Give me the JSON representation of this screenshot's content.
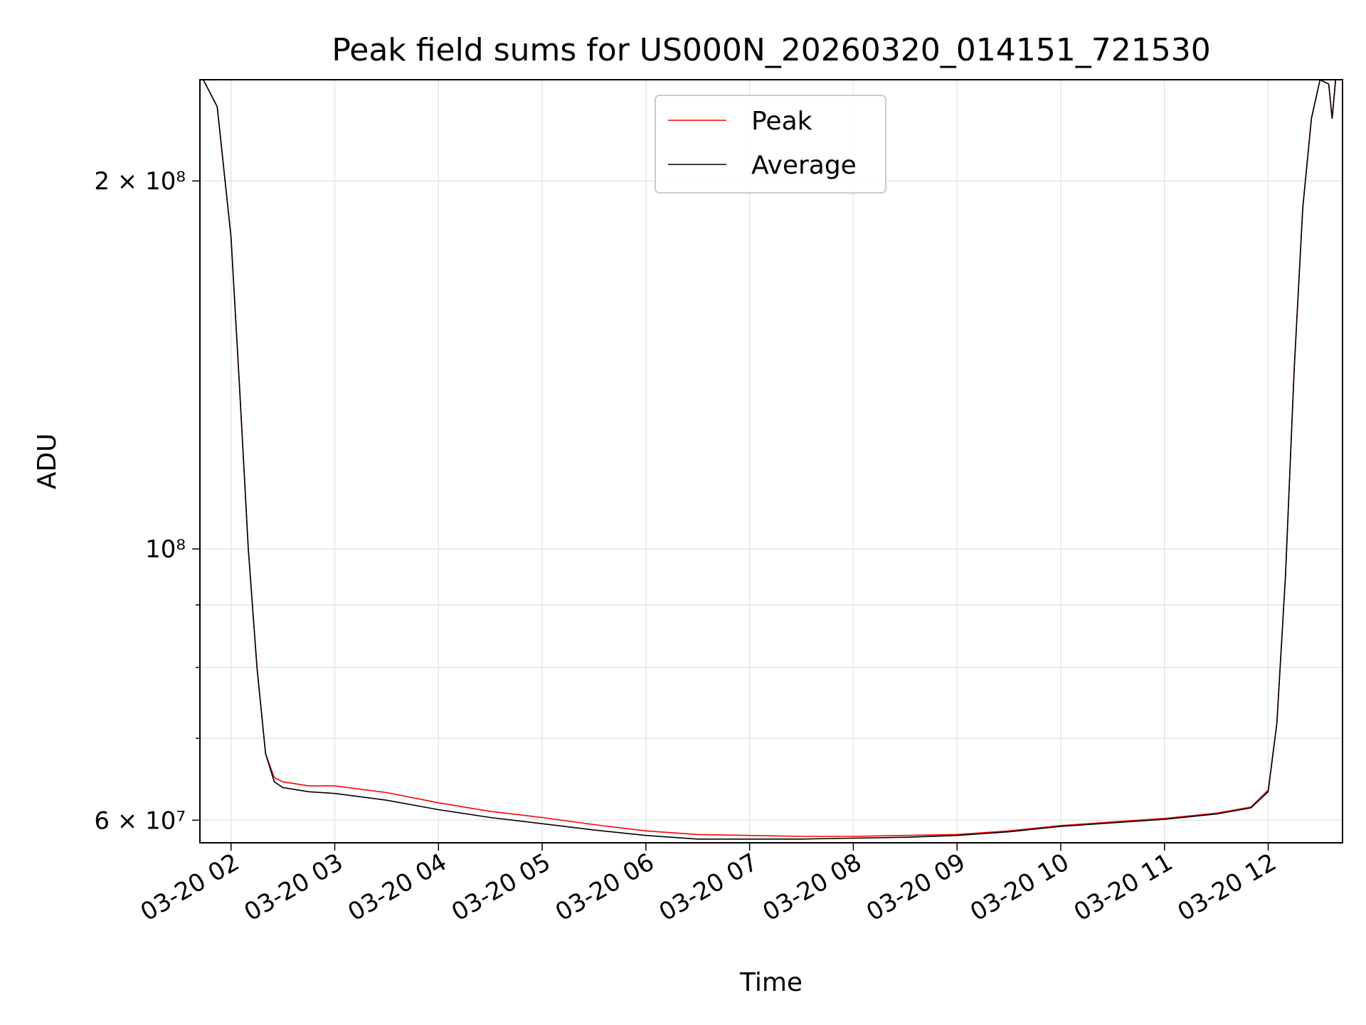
{
  "chart_data": {
    "type": "line",
    "title": "Peak field sums for US000N_20260320_014151_721530",
    "xlabel": "Time",
    "ylabel": "ADU",
    "yscale": "log",
    "grid": true,
    "legend_position": "upper-center",
    "xlim": [
      "03-20 01:42",
      "03-20 12:43"
    ],
    "ylim": [
      57500000,
      242000000
    ],
    "x_ticks": [
      "03-20 02",
      "03-20 03",
      "03-20 04",
      "03-20 05",
      "03-20 06",
      "03-20 07",
      "03-20 08",
      "03-20 09",
      "03-20 10",
      "03-20 11",
      "03-20 12"
    ],
    "y_ticks_major": [
      {
        "value": 60000000,
        "label": "6 × 10⁷"
      },
      {
        "value": 100000000,
        "label": "10⁸"
      },
      {
        "value": 200000000,
        "label": "2 × 10⁸"
      }
    ],
    "y_ticks_minor": [
      70000000,
      80000000,
      90000000,
      300000000
    ],
    "series": [
      {
        "name": "Peak",
        "color": "#ff0000",
        "x": [
          "03-20 01:42",
          "03-20 01:52",
          "03-20 02:00",
          "03-20 02:05",
          "03-20 02:10",
          "03-20 02:15",
          "03-20 02:20",
          "03-20 02:25",
          "03-20 02:30",
          "03-20 02:45",
          "03-20 03:00",
          "03-20 03:30",
          "03-20 04:00",
          "03-20 04:30",
          "03-20 05:00",
          "03-20 05:30",
          "03-20 06:00",
          "03-20 06:30",
          "03-20 07:00",
          "03-20 07:30",
          "03-20 08:00",
          "03-20 08:30",
          "03-20 09:00",
          "03-20 09:30",
          "03-20 10:00",
          "03-20 10:30",
          "03-20 11:00",
          "03-20 11:30",
          "03-20 11:50",
          "03-20 12:00",
          "03-20 12:05",
          "03-20 12:10",
          "03-20 12:15",
          "03-20 12:20",
          "03-20 12:25",
          "03-20 12:30",
          "03-20 12:35",
          "03-20 12:37",
          "03-20 12:39",
          "03-20 12:43"
        ],
        "y": [
          245000000,
          230000000,
          180000000,
          135000000,
          100000000,
          80000000,
          68000000,
          65000000,
          64500000,
          64000000,
          64000000,
          63200000,
          62000000,
          61000000,
          60300000,
          59500000,
          58800000,
          58400000,
          58300000,
          58200000,
          58200000,
          58300000,
          58400000,
          58800000,
          59400000,
          59800000,
          60200000,
          60800000,
          61500000,
          63500000,
          72000000,
          95000000,
          140000000,
          190000000,
          225000000,
          242000000,
          240000000,
          225000000,
          242000000,
          242000000
        ]
      },
      {
        "name": "Average",
        "color": "#000000",
        "x": [
          "03-20 01:42",
          "03-20 01:52",
          "03-20 02:00",
          "03-20 02:05",
          "03-20 02:10",
          "03-20 02:15",
          "03-20 02:20",
          "03-20 02:25",
          "03-20 02:30",
          "03-20 02:45",
          "03-20 03:00",
          "03-20 03:30",
          "03-20 04:00",
          "03-20 04:30",
          "03-20 05:00",
          "03-20 05:30",
          "03-20 06:00",
          "03-20 06:30",
          "03-20 07:00",
          "03-20 07:30",
          "03-20 08:00",
          "03-20 08:30",
          "03-20 09:00",
          "03-20 09:30",
          "03-20 10:00",
          "03-20 10:30",
          "03-20 11:00",
          "03-20 11:30",
          "03-20 11:50",
          "03-20 12:00",
          "03-20 12:05",
          "03-20 12:10",
          "03-20 12:15",
          "03-20 12:20",
          "03-20 12:25",
          "03-20 12:30",
          "03-20 12:35",
          "03-20 12:37",
          "03-20 12:39",
          "03-20 12:43"
        ],
        "y": [
          245000000,
          230000000,
          180000000,
          135000000,
          100000000,
          80000000,
          68000000,
          64500000,
          63800000,
          63300000,
          63100000,
          62300000,
          61200000,
          60300000,
          59600000,
          58900000,
          58300000,
          57900000,
          57900000,
          57900000,
          58000000,
          58100000,
          58300000,
          58700000,
          59300000,
          59700000,
          60100000,
          60700000,
          61400000,
          63300000,
          72000000,
          95000000,
          140000000,
          190000000,
          225000000,
          242000000,
          240000000,
          225000000,
          242000000,
          242000000
        ]
      }
    ]
  }
}
